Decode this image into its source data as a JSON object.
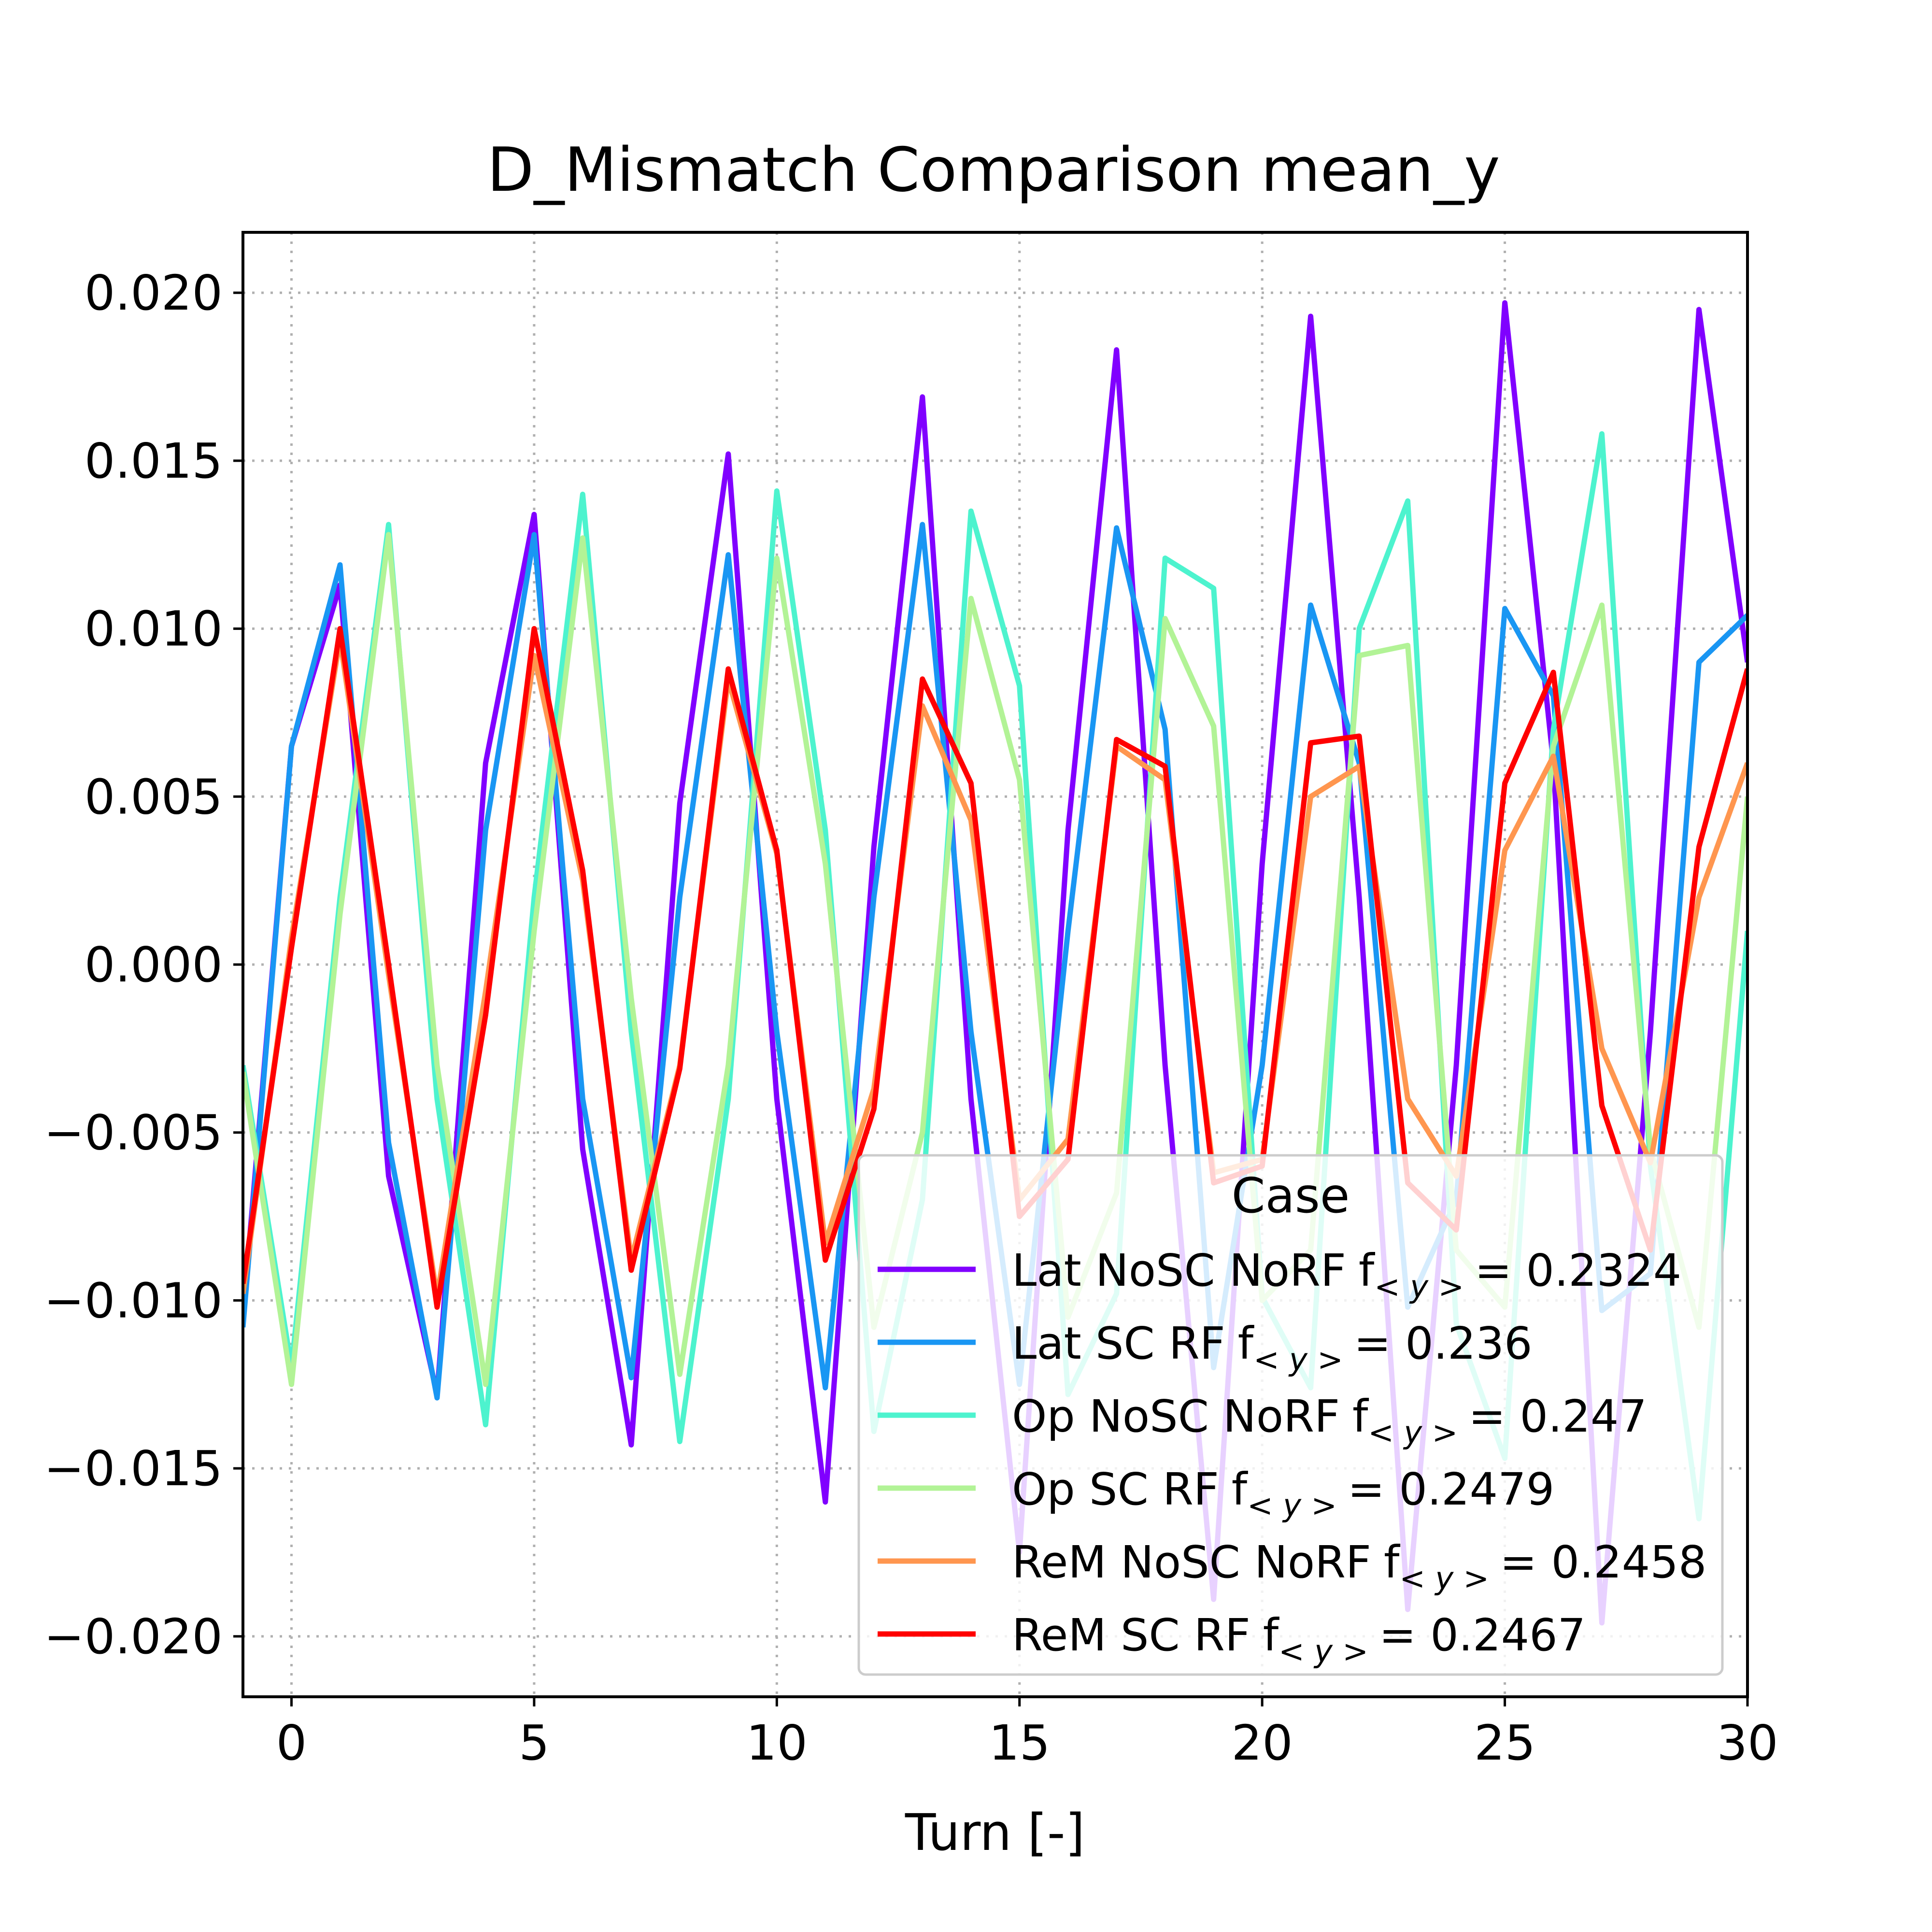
{
  "chart_data": {
    "type": "line",
    "title": "D_Mismatch Comparison mean_y",
    "xlabel": "Turn [-]",
    "ylabel": "",
    "xlim": [
      -1,
      30
    ],
    "ylim": [
      -0.0218,
      0.0218
    ],
    "x_ticks": [
      0,
      5,
      10,
      15,
      20,
      25,
      30
    ],
    "x_tick_labels": [
      "0",
      "5",
      "10",
      "15",
      "20",
      "25",
      "30"
    ],
    "y_ticks": [
      0.02,
      0.015,
      0.01,
      0.005,
      0.0,
      -0.005,
      -0.01,
      -0.015,
      -0.02
    ],
    "y_tick_labels": [
      "0.020",
      "0.015",
      "0.010",
      "0.005",
      "0.000",
      "−0.005",
      "−0.010",
      "−0.015",
      "−0.020"
    ],
    "grid": true,
    "legend": {
      "title": "Case",
      "placement": "lower-right"
    },
    "x": [
      -1,
      0,
      1,
      2,
      3,
      4,
      5,
      6,
      7,
      8,
      9,
      10,
      11,
      12,
      13,
      14,
      15,
      16,
      17,
      18,
      19,
      20,
      21,
      22,
      23,
      24,
      25,
      26,
      27,
      28,
      29,
      30
    ],
    "series": [
      {
        "name": "Lat NoSC NoRF",
        "label_suffix": "= 0.2324",
        "color": "#8000ff",
        "values": [
          -0.0105,
          0.0065,
          0.0113,
          -0.0063,
          -0.0128,
          0.006,
          0.0134,
          -0.0055,
          -0.0143,
          0.0048,
          0.0152,
          -0.004,
          -0.016,
          0.0035,
          0.0169,
          -0.004,
          -0.0175,
          0.004,
          0.0183,
          -0.003,
          -0.0189,
          0.003,
          0.0193,
          0.002,
          -0.0192,
          -0.003,
          0.0197,
          0.006,
          -0.0196,
          -0.002,
          0.0195,
          0.009
        ]
      },
      {
        "name": "Lat SC RF",
        "label_suffix": "= 0.236",
        "color": "#1996f3",
        "values": [
          -0.0108,
          0.0065,
          0.0119,
          -0.0053,
          -0.0129,
          0.004,
          0.0128,
          -0.004,
          -0.0123,
          0.002,
          0.0122,
          -0.002,
          -0.0126,
          0.002,
          0.0131,
          -0.002,
          -0.0125,
          0.001,
          0.013,
          0.007,
          -0.012,
          -0.003,
          0.0107,
          0.006,
          -0.0102,
          -0.007,
          0.0106,
          0.008,
          -0.0103,
          -0.0092,
          0.009,
          0.0104
        ]
      },
      {
        "name": "Op NoSC NoRF",
        "label_suffix": "= 0.247",
        "color": "#4df3ce",
        "values": [
          -0.003,
          -0.012,
          0.002,
          0.0131,
          -0.004,
          -0.0137,
          0.002,
          0.014,
          -0.002,
          -0.0142,
          -0.004,
          0.0141,
          0.004,
          -0.0139,
          -0.007,
          0.0135,
          0.0083,
          -0.0128,
          -0.0098,
          0.0121,
          0.0112,
          -0.0099,
          -0.0126,
          0.01,
          0.0138,
          -0.0107,
          -0.0147,
          0.007,
          0.0158,
          -0.006,
          -0.0165,
          0.001
        ]
      },
      {
        "name": "Op SC RF",
        "label_suffix": "= 0.2479",
        "color": "#b2f396",
        "values": [
          -0.0032,
          -0.0125,
          0.0015,
          0.0128,
          -0.003,
          -0.0125,
          0.001,
          0.0127,
          -0.001,
          -0.0122,
          -0.003,
          0.0121,
          0.003,
          -0.0108,
          -0.005,
          0.0109,
          0.0055,
          -0.0105,
          -0.0068,
          0.0103,
          0.0071,
          -0.01,
          -0.0085,
          0.0092,
          0.0095,
          -0.0085,
          -0.0102,
          0.0065,
          0.0107,
          -0.0055,
          -0.0108,
          0.005
        ]
      },
      {
        "name": "ReM NoSC NoRF",
        "label_suffix": "= 0.2458",
        "color": "#ff964f",
        "values": [
          -0.0098,
          0.0008,
          0.0097,
          -0.0003,
          -0.0099,
          -0.0008,
          0.0092,
          0.0025,
          -0.0088,
          -0.003,
          0.0085,
          0.0033,
          -0.0083,
          -0.0037,
          0.0077,
          0.0043,
          -0.007,
          -0.0052,
          0.0065,
          0.0055,
          -0.0062,
          -0.0058,
          0.005,
          0.0059,
          -0.004,
          -0.0063,
          0.0034,
          0.0062,
          -0.0025,
          -0.0059,
          0.002,
          0.006
        ]
      },
      {
        "name": "ReM SC RF",
        "label_suffix": "= 0.2467",
        "color": "#ff0000",
        "values": [
          -0.0095,
          0.0005,
          0.01,
          0.0,
          -0.0102,
          -0.0015,
          0.01,
          0.0028,
          -0.0091,
          -0.0031,
          0.0088,
          0.0034,
          -0.0088,
          -0.0043,
          0.0085,
          0.0054,
          -0.0075,
          -0.0058,
          0.0067,
          0.0059,
          -0.0065,
          -0.006,
          0.0066,
          0.0068,
          -0.0065,
          -0.0079,
          0.0054,
          0.0087,
          -0.0042,
          -0.0085,
          0.0035,
          0.0088
        ]
      }
    ]
  }
}
